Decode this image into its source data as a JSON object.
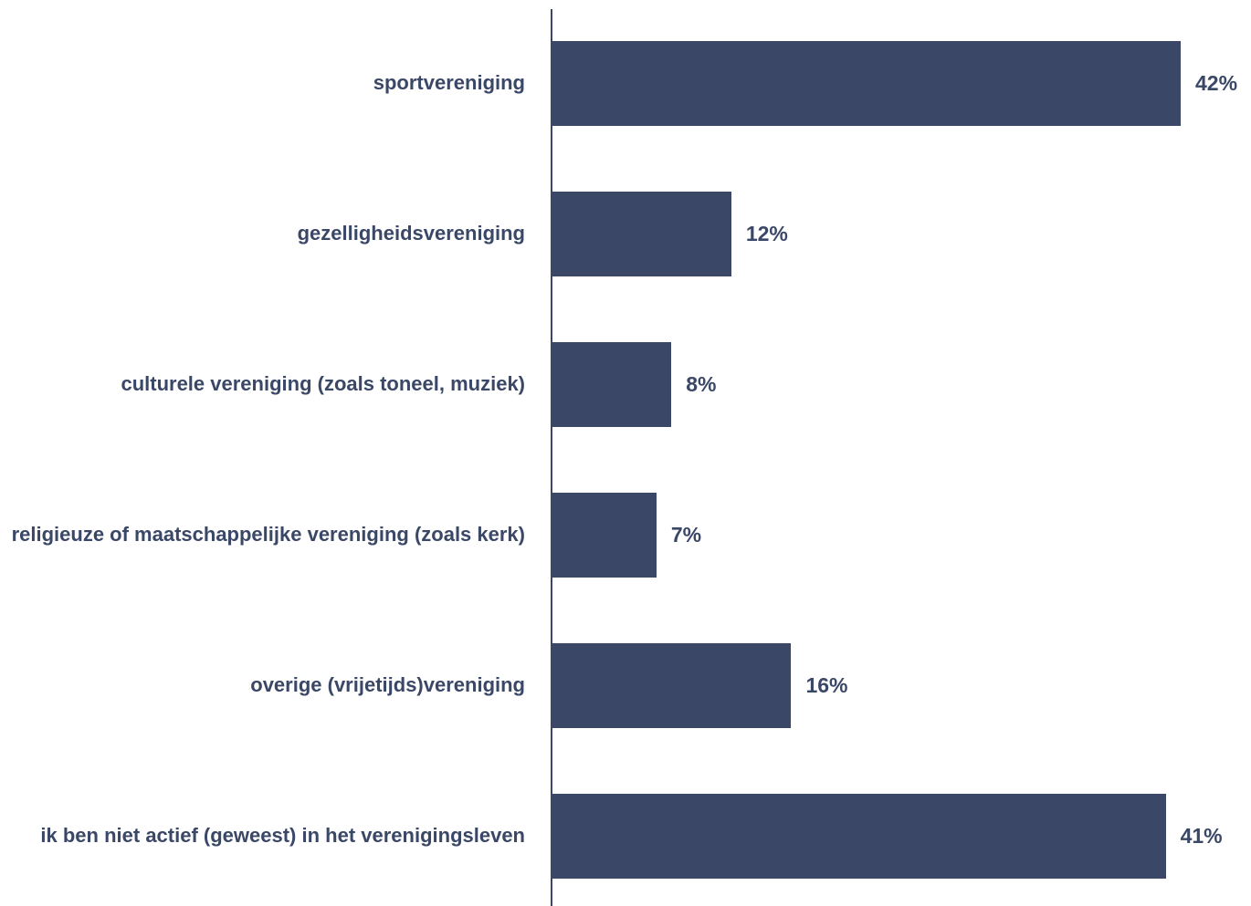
{
  "chart_data": {
    "type": "bar",
    "orientation": "horizontal",
    "categories": [
      "sportvereniging",
      "gezelligheidsvereniging",
      "culturele vereniging (zoals toneel, muziek)",
      "religieuze of maatschappelijke vereniging (zoals kerk)",
      "overige (vrijetijds)vereniging",
      "ik ben niet actief (geweest) in het verenigingsleven"
    ],
    "values": [
      42,
      12,
      8,
      7,
      16,
      41
    ],
    "value_labels": [
      "42%",
      "12%",
      "8%",
      "7%",
      "16%",
      "41%"
    ],
    "color": "#3a4766"
  }
}
